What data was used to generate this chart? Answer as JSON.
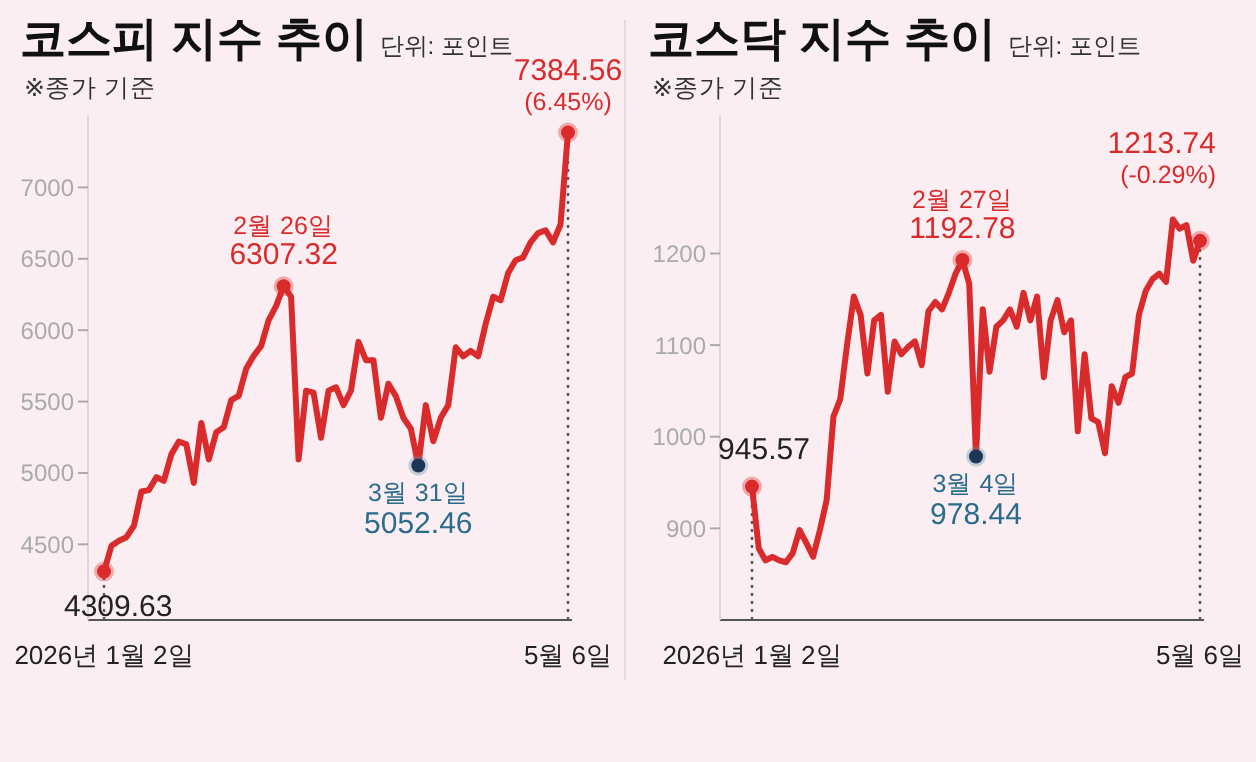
{
  "chart_data": [
    {
      "type": "line",
      "title": "코스피 지수 추이",
      "subtitle": "단위: 포인트",
      "annotations": [
        "※종가 기준",
        {
          "text": "2월 26일",
          "y": 6307.32
        },
        {
          "text": "3월 31일",
          "y": 5052.46
        },
        "(6.45%)"
      ],
      "categories": [
        "2026년 1월 2일",
        null,
        null,
        null,
        null,
        null,
        null,
        null,
        null,
        null,
        null,
        null,
        null,
        null,
        null,
        null,
        null,
        null,
        null,
        null,
        null,
        null,
        null,
        null,
        null,
        null,
        null,
        null,
        null,
        null,
        null,
        null,
        null,
        null,
        null,
        null,
        null,
        null,
        null,
        null,
        null,
        null,
        null,
        null,
        null,
        null,
        null,
        null,
        null,
        null,
        null,
        null,
        null,
        null,
        null,
        null,
        null,
        null,
        null,
        null,
        null,
        null,
        "5월 6일"
      ],
      "series": [
        {
          "color": "#d92b2b",
          "values": [
            4309.63,
            4490,
            4525,
            4550,
            4630,
            4870,
            4880,
            4970,
            4945,
            5130,
            5220,
            5200,
            4930,
            5350,
            5095,
            5285,
            5320,
            5510,
            5540,
            5730,
            5820,
            5890,
            6070,
            6170,
            6307.32,
            6234,
            5095,
            5576,
            5563,
            5247,
            5576,
            5600,
            5475,
            5576,
            5918,
            5790,
            5790,
            5386,
            5625,
            5538,
            5386,
            5310,
            5052.46,
            5475,
            5222,
            5386,
            5475,
            5880,
            5817,
            5855,
            5817,
            6045,
            6234,
            6210,
            6400,
            6490,
            6510,
            6615,
            6680,
            6700,
            6615,
            6740,
            7384.56
          ],
          "value_labels": [
            "4309.63",
            null,
            null,
            null,
            null,
            null,
            null,
            null,
            null,
            null,
            null,
            null,
            null,
            null,
            null,
            null,
            null,
            null,
            null,
            null,
            null,
            null,
            null,
            null,
            "6307.32",
            null,
            null,
            null,
            null,
            null,
            null,
            null,
            null,
            null,
            null,
            null,
            null,
            null,
            null,
            null,
            null,
            null,
            "5052.46",
            null,
            null,
            null,
            null,
            null,
            null,
            null,
            null,
            null,
            null,
            null,
            null,
            null,
            null,
            null,
            null,
            null,
            null,
            null,
            "7384.56"
          ]
        }
      ],
      "ylim": [
        3970,
        7500
      ],
      "yticks": [
        4500,
        5000,
        5500,
        6000,
        6500,
        7000
      ],
      "ref_lines": [
        {
          "axis": "x",
          "value": "2026년 1월 2일",
          "line_style": "dotted"
        },
        {
          "axis": "x",
          "value": "5월 6일",
          "line_style": "dotted"
        }
      ]
    },
    {
      "type": "line",
      "title": "코스닥 지수 추이",
      "subtitle": "단위: 포인트",
      "annotations": [
        "※종가 기준",
        {
          "text": "2월 27일",
          "y": 1192.78
        },
        {
          "text": "3월 4일",
          "y": 978.44
        },
        "(-0.29%)"
      ],
      "categories": [
        "2026년 1월 2일",
        null,
        null,
        null,
        null,
        null,
        null,
        null,
        null,
        null,
        null,
        null,
        null,
        null,
        null,
        null,
        null,
        null,
        null,
        null,
        null,
        null,
        null,
        null,
        null,
        null,
        null,
        null,
        null,
        null,
        null,
        null,
        null,
        null,
        null,
        null,
        null,
        null,
        null,
        null,
        null,
        null,
        null,
        null,
        null,
        null,
        null,
        null,
        null,
        null,
        null,
        null,
        null,
        null,
        null,
        null,
        null,
        null,
        null,
        null,
        null,
        null,
        null,
        null,
        null,
        null,
        "5월 6일"
      ],
      "series": [
        {
          "color": "#d92b2b",
          "values": [
            945.57,
            878,
            865,
            869,
            865,
            863,
            873,
            898,
            884,
            869,
            898,
            931,
            1022,
            1041,
            1100,
            1153,
            1133,
            1069,
            1127,
            1133,
            1049,
            1104,
            1090,
            1098,
            1104,
            1078,
            1137,
            1147,
            1139,
            1157,
            1178,
            1192.78,
            1167,
            978.44,
            1139,
            1071,
            1120,
            1127,
            1139,
            1120,
            1157,
            1127,
            1153,
            1065,
            1127,
            1149,
            1114,
            1127,
            1006,
            1090,
            1020,
            1016,
            982,
            1055,
            1037,
            1065,
            1069,
            1133,
            1159,
            1172,
            1178,
            1169,
            1237,
            1227,
            1231,
            1192,
            1213.74
          ],
          "value_labels": [
            "945.57",
            null,
            null,
            null,
            null,
            null,
            null,
            null,
            null,
            null,
            null,
            null,
            null,
            null,
            null,
            null,
            null,
            null,
            null,
            null,
            null,
            null,
            null,
            null,
            null,
            null,
            null,
            null,
            null,
            null,
            null,
            "1192.78",
            null,
            "978.44",
            null,
            null,
            null,
            null,
            null,
            null,
            null,
            null,
            null,
            null,
            null,
            null,
            null,
            null,
            null,
            null,
            null,
            null,
            null,
            null,
            null,
            null,
            null,
            null,
            null,
            null,
            null,
            null,
            null,
            null,
            null,
            null,
            "1213.74"
          ]
        }
      ],
      "ylim": [
        800,
        1350
      ],
      "yticks": [
        900,
        1000,
        1100,
        1200
      ],
      "ref_lines": [
        {
          "axis": "x",
          "value": "2026년 1월 2일",
          "line_style": "dotted"
        },
        {
          "axis": "x",
          "value": "5월 6일",
          "line_style": "dotted"
        }
      ]
    }
  ]
}
